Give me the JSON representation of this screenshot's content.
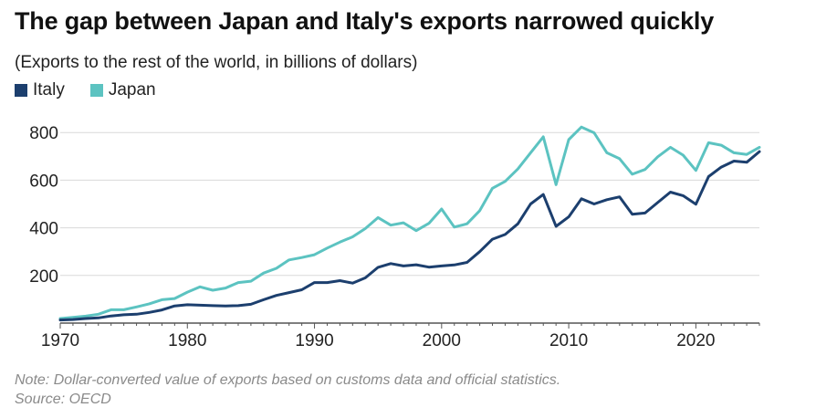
{
  "title": "The gap between Japan and Italy's exports narrowed quickly",
  "subtitle": "(Exports to the rest of the world, in billions of dollars)",
  "legend": [
    {
      "name": "Italy",
      "color": "#1c3f6e"
    },
    {
      "name": "Japan",
      "color": "#5cc3c1"
    }
  ],
  "note": "Note: Dollar-converted value of exports based on customs data and official statistics.",
  "source": "Source: OECD",
  "chart_data": {
    "type": "line",
    "title": "The gap between Japan and Italy's exports narrowed quickly",
    "subtitle": "(Exports to the rest of the world, in billions of dollars)",
    "xlabel": "",
    "ylabel": "",
    "xlim": [
      1970,
      2025
    ],
    "ylim": [
      0,
      820
    ],
    "x_ticks": [
      1970,
      1980,
      1990,
      2000,
      2010,
      2020
    ],
    "y_ticks": [
      200,
      400,
      600,
      800
    ],
    "grid": "horizontal",
    "legend_position": "top-left",
    "x": [
      1970,
      1971,
      1972,
      1973,
      1974,
      1975,
      1976,
      1977,
      1978,
      1979,
      1980,
      1981,
      1982,
      1983,
      1984,
      1985,
      1986,
      1987,
      1988,
      1989,
      1990,
      1991,
      1992,
      1993,
      1994,
      1995,
      1996,
      1997,
      1998,
      1999,
      2000,
      2001,
      2002,
      2003,
      2004,
      2005,
      2006,
      2007,
      2008,
      2009,
      2010,
      2011,
      2012,
      2013,
      2014,
      2015,
      2016,
      2017,
      2018,
      2019,
      2020,
      2021,
      2022,
      2023,
      2024,
      2025
    ],
    "series": [
      {
        "name": "Italy",
        "color": "#1c3f6e",
        "values": [
          13,
          15,
          19,
          22,
          30,
          35,
          37,
          45,
          55,
          72,
          77,
          75,
          73,
          72,
          73,
          79,
          98,
          116,
          128,
          140,
          170,
          170,
          178,
          168,
          190,
          234,
          250,
          240,
          245,
          235,
          240,
          244,
          255,
          300,
          352,
          372,
          417,
          500,
          540,
          406,
          446,
          522,
          500,
          518,
          530,
          457,
          462,
          506,
          550,
          535,
          499,
          615,
          655,
          680,
          675,
          720
        ]
      },
      {
        "name": "Japan",
        "color": "#5cc3c1",
        "values": [
          19,
          24,
          29,
          37,
          56,
          56,
          68,
          81,
          98,
          103,
          130,
          152,
          138,
          147,
          170,
          176,
          210,
          230,
          265,
          275,
          287,
          315,
          340,
          362,
          397,
          443,
          411,
          421,
          388,
          419,
          479,
          403,
          417,
          472,
          566,
          595,
          647,
          715,
          782,
          581,
          770,
          823,
          799,
          715,
          690,
          625,
          645,
          698,
          738,
          705,
          641,
          757,
          747,
          715,
          708,
          738
        ]
      }
    ]
  }
}
